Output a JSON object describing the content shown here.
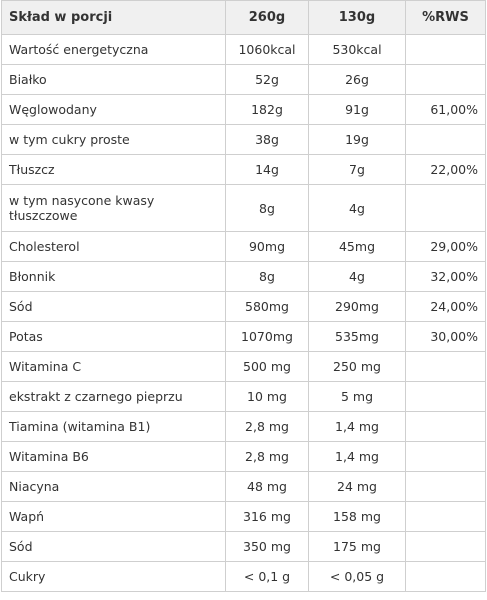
{
  "table": {
    "header": [
      "Skład w porcji",
      "260g",
      "130g",
      "%RWS"
    ],
    "rows": [
      [
        "Wartość energetyczna",
        "1060kcal",
        "530kcal",
        null
      ],
      [
        "Białko",
        "52g",
        "26g",
        null
      ],
      [
        "Węglowodany",
        "182g",
        "91g",
        "61,00%"
      ],
      [
        "w tym cukry proste",
        "38g",
        "19g",
        null
      ],
      [
        "Tłuszcz",
        "14g",
        "7g",
        "22,00%"
      ],
      [
        "w tym nasycone kwasy tłuszczowe",
        "8g",
        "4g",
        null
      ],
      [
        "Cholesterol",
        "90mg",
        "45mg",
        "29,00%"
      ],
      [
        "Błonnik",
        "8g",
        "4g",
        "32,00%"
      ],
      [
        "Sód",
        "580mg",
        "290mg",
        "24,00%"
      ],
      [
        "Potas",
        "1070mg",
        "535mg",
        "30,00%"
      ],
      [
        "Witamina C",
        "500 mg",
        "250 mg",
        null
      ],
      [
        "ekstrakt z czarnego pieprzu",
        "10 mg",
        "5 mg",
        null
      ],
      [
        "Tiamina (witamina B1)",
        "2,8 mg",
        "1,4 mg",
        null
      ],
      [
        "Witamina B6",
        "2,8 mg",
        "1,4 mg",
        null
      ],
      [
        "Niacyna",
        "48 mg",
        "24 mg",
        null
      ],
      [
        "Wapń",
        "316 mg",
        "158 mg",
        null
      ],
      [
        "Sód",
        "350 mg",
        "175 mg",
        null
      ],
      [
        "Cukry",
        "< 0,1 g",
        "< 0,05 g",
        null
      ]
    ]
  }
}
